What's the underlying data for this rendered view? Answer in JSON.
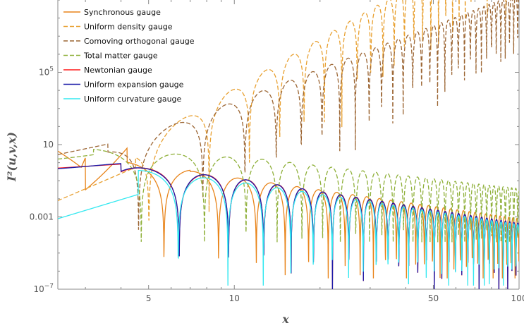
{
  "chart_data": {
    "type": "line",
    "title": "",
    "xlabel": "x",
    "ylabel": "I²(u,v,x)",
    "x_scale": "log",
    "y_scale": "log",
    "xlim": [
      2.4,
      100
    ],
    "ylim": [
      1e-07,
      1000000000.0
    ],
    "x_ticks": [
      {
        "value": 5,
        "label": "5"
      },
      {
        "value": 10,
        "label": "10"
      },
      {
        "value": 50,
        "label": "50"
      },
      {
        "value": 100,
        "label": "100"
      }
    ],
    "y_ticks": [
      {
        "value": 1e-07,
        "label": "10",
        "sup": "−7"
      },
      {
        "value": 0.001,
        "label": "0.001",
        "sup": ""
      },
      {
        "value": 10,
        "label": "10",
        "sup": ""
      },
      {
        "value": 100000.0,
        "label": "10",
        "sup": "5"
      }
    ],
    "legend_position": "top-left",
    "series": [
      {
        "name": "Synchronous gauge",
        "color": "#e8841a",
        "dash": "",
        "model": "sync"
      },
      {
        "name": "Uniform density gauge",
        "color": "#e8a030",
        "dash": "6,3",
        "model": "udens"
      },
      {
        "name": "Comoving orthogonal gauge",
        "color": "#9c6634",
        "dash": "6,3",
        "model": "como"
      },
      {
        "name": "Total matter gauge",
        "color": "#8fb03a",
        "dash": "6,3",
        "model": "tm"
      },
      {
        "name": "Newtonian gauge",
        "color": "#ff1a1a",
        "dash": "",
        "model": "newt"
      },
      {
        "name": "Uniform expansion gauge",
        "color": "#1a1aa8",
        "dash": "",
        "model": "uexp"
      },
      {
        "name": "Uniform curvature gauge",
        "color": "#33e8f0",
        "dash": "",
        "model": "ucurv"
      }
    ]
  }
}
